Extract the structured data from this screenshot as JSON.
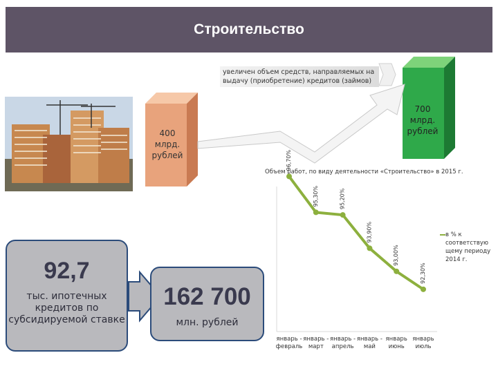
{
  "header": {
    "title": "Строительство"
  },
  "note": {
    "text": "увеличен объем средств, направляемых на выдачу (приобретение) кредитов (займов)"
  },
  "bar_small": {
    "value_label": "400 млрд. рублей",
    "color": "#e8a37c"
  },
  "bar_big": {
    "value_label": "700 млрд. рублей",
    "color": "#2fa94a"
  },
  "mortgage": {
    "value": "92,7",
    "description": "тыс. ипотечных кредитов по субсидируемой ставке"
  },
  "amount": {
    "value": "162 700",
    "unit": "млн. рублей"
  },
  "chart_data": {
    "type": "line",
    "title": "Объем работ, по виду деятельности «Строительство» в 2015 г.",
    "categories": [
      "январь - февраль",
      "январь - март",
      "январь - апрель",
      "январь - май",
      "январь июнь",
      "январь июль"
    ],
    "series": [
      {
        "name": "в % к соответствую щему периоду 2014 г.",
        "values": [
          96.7,
          95.3,
          95.2,
          93.9,
          93.0,
          92.3
        ]
      }
    ],
    "data_labels": [
      "96,70%",
      "95,30%",
      "95,20%",
      "93,90%",
      "93,00%",
      "92,30%"
    ],
    "legend_position": "right",
    "line_color": "#8db03e"
  }
}
